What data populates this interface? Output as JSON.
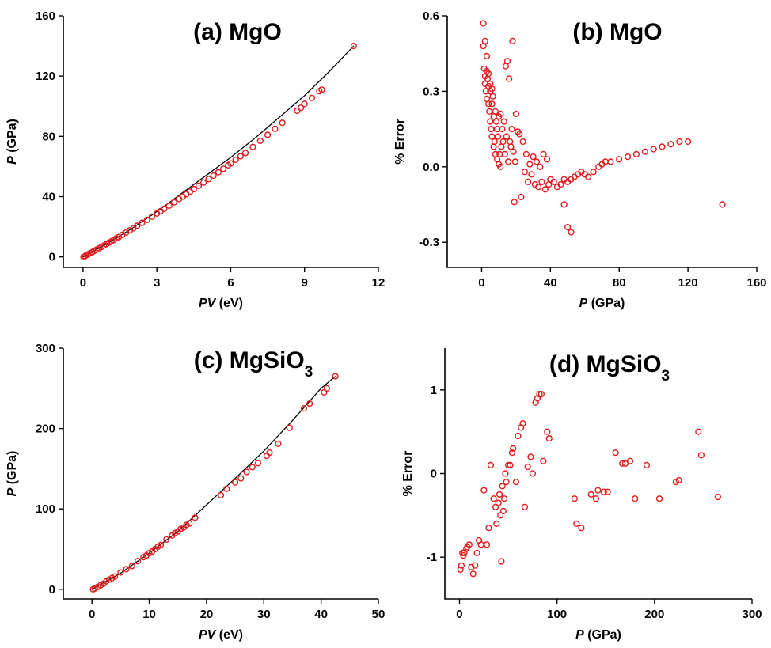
{
  "chart_data": [
    {
      "id": "a",
      "type": "scatter",
      "title": "(a) MgO",
      "title_parts": [
        {
          "t": "(a) MgO"
        }
      ],
      "xlabel_parts": [
        {
          "t": "PV",
          "i": true
        },
        {
          "t": " (eV)"
        }
      ],
      "ylabel_parts": [
        {
          "t": "P",
          "i": true
        },
        {
          "t": " (GPa)"
        }
      ],
      "xlim": [
        -0.8,
        12
      ],
      "ylim": [
        -7,
        160
      ],
      "xticks": [
        0,
        3,
        6,
        9,
        12
      ],
      "yticks": [
        0,
        40,
        80,
        120,
        160
      ],
      "fit_line": {
        "x": [
          0,
          1,
          2,
          3,
          4,
          5,
          6,
          7,
          8,
          9,
          10,
          11
        ],
        "y": [
          0,
          9,
          19,
          30,
          42,
          54,
          66,
          79,
          93,
          107,
          123,
          140
        ]
      },
      "series": [
        {
          "marker": "open-circle",
          "color": "#e31a1c",
          "x": [
            0.02,
            0.08,
            0.15,
            0.22,
            0.3,
            0.38,
            0.45,
            0.55,
            0.65,
            0.75,
            0.85,
            0.95,
            1.05,
            1.15,
            1.25,
            1.35,
            1.45,
            1.6,
            1.75,
            1.9,
            2.05,
            2.2,
            2.4,
            2.6,
            2.8,
            3.0,
            3.15,
            3.3,
            3.5,
            3.7,
            3.9,
            4.05,
            4.2,
            4.35,
            4.5,
            4.7,
            4.9,
            5.1,
            5.3,
            5.5,
            5.7,
            5.9,
            6.0,
            6.2,
            6.4,
            6.6,
            6.9,
            7.2,
            7.5,
            7.8,
            8.1,
            8.7,
            8.85,
            9.0,
            9.3,
            9.6,
            9.7,
            11.0
          ],
          "y": [
            0,
            0.5,
            1.2,
            1.8,
            2.5,
            3.2,
            3.9,
            4.8,
            5.7,
            6.6,
            7.5,
            8.5,
            9.4,
            10.3,
            11.2,
            12.2,
            13.1,
            14.6,
            16.1,
            17.6,
            19.0,
            20.6,
            22.6,
            24.6,
            26.7,
            28.8,
            30.3,
            31.9,
            34.0,
            36.2,
            38.4,
            40.0,
            41.6,
            43.3,
            45.0,
            47.2,
            49.4,
            51.7,
            53.9,
            56.2,
            58.5,
            60.8,
            62.0,
            64.5,
            66.8,
            69.0,
            73.0,
            77.0,
            81.0,
            85.0,
            89.0,
            97.0,
            99.0,
            101.5,
            105.5,
            110.0,
            111.0,
            140.0
          ]
        }
      ]
    },
    {
      "id": "b",
      "type": "scatter",
      "title": "(b) MgO",
      "title_parts": [
        {
          "t": "(b) MgO"
        }
      ],
      "xlabel_parts": [
        {
          "t": "P",
          "i": true
        },
        {
          "t": " (GPa)"
        }
      ],
      "ylabel_parts": [
        {
          "t": "% Error"
        }
      ],
      "xlim": [
        -20,
        160
      ],
      "ylim": [
        -0.4,
        0.6
      ],
      "xticks": [
        0,
        40,
        80,
        120,
        160
      ],
      "yticks": [
        -0.3,
        0.0,
        0.3,
        0.6
      ],
      "ytick_labels": [
        "-0.3",
        "0.0",
        "0.3",
        "0.6"
      ],
      "series": [
        {
          "marker": "open-circle",
          "color": "#e31a1c",
          "x": [
            1,
            1,
            1.5,
            2,
            2,
            2.5,
            3,
            3,
            3.5,
            4,
            4,
            4.5,
            5,
            5,
            5.5,
            6,
            6,
            6.5,
            7,
            7,
            7.5,
            8,
            8,
            8.5,
            9,
            9,
            9.5,
            10,
            10,
            10.5,
            11,
            11,
            11.5,
            12,
            12.5,
            13,
            13.5,
            14,
            14.5,
            15,
            15.5,
            16,
            16.5,
            17,
            17.5,
            18,
            18.5,
            19,
            19.5,
            20,
            21,
            22,
            23,
            24,
            25,
            26,
            27,
            28,
            29,
            30,
            31,
            32,
            33,
            34,
            35,
            36,
            37,
            38,
            39,
            40,
            42,
            44,
            46,
            48,
            50,
            52,
            54,
            56,
            58,
            60,
            62,
            65,
            68,
            70,
            72,
            75,
            80,
            85,
            90,
            95,
            100,
            105,
            110,
            115,
            120,
            140,
            52,
            50,
            48,
            2,
            3,
            4,
            5,
            6
          ],
          "y": [
            0.57,
            0.48,
            0.39,
            0.36,
            0.33,
            0.3,
            0.38,
            0.27,
            0.35,
            0.32,
            0.25,
            0.22,
            0.3,
            0.18,
            0.15,
            0.25,
            0.12,
            0.28,
            0.2,
            0.08,
            0.1,
            0.22,
            0.05,
            0.18,
            0.03,
            0.15,
            0.12,
            0.2,
            0.01,
            0.05,
            0.21,
            0.0,
            0.08,
            0.15,
            0.1,
            0.18,
            0.05,
            0.4,
            0.12,
            0.42,
            0.02,
            0.35,
            0.1,
            0.08,
            0.15,
            0.5,
            0.06,
            -0.14,
            0.02,
            0.21,
            0.14,
            0.13,
            -0.12,
            0.1,
            -0.02,
            0.05,
            -0.06,
            0.01,
            -0.03,
            0.04,
            -0.07,
            0.02,
            -0.08,
            0.0,
            -0.06,
            0.05,
            -0.09,
            0.03,
            -0.07,
            -0.05,
            -0.06,
            -0.08,
            -0.07,
            -0.05,
            -0.06,
            -0.05,
            -0.04,
            -0.03,
            -0.02,
            -0.03,
            -0.04,
            -0.02,
            0.0,
            0.01,
            0.02,
            0.02,
            0.03,
            0.04,
            0.05,
            0.06,
            0.07,
            0.08,
            0.09,
            0.1,
            0.1,
            -0.15,
            -0.26,
            -0.24,
            -0.15,
            0.5,
            0.44,
            0.37,
            0.33,
            0.31
          ],
          "note": "values estimated"
        }
      ]
    },
    {
      "id": "c",
      "type": "scatter",
      "title": "(c) MgSiO3",
      "title_parts": [
        {
          "t": "(c) MgSiO"
        },
        {
          "t": "3",
          "sub": true
        }
      ],
      "xlabel_parts": [
        {
          "t": "PV",
          "i": true
        },
        {
          "t": " (eV)"
        }
      ],
      "ylabel_parts": [
        {
          "t": "P",
          "i": true
        },
        {
          "t": " (GPa)"
        }
      ],
      "xlim": [
        -5,
        50
      ],
      "ylim": [
        -12,
        300
      ],
      "xticks": [
        0,
        10,
        20,
        30,
        40,
        50
      ],
      "yticks": [
        0,
        100,
        200,
        300
      ],
      "fit_line": {
        "x": [
          0,
          5,
          10,
          15,
          20,
          25,
          30,
          35,
          40,
          42.5
        ],
        "y": [
          0,
          20,
          45,
          72,
          105,
          138,
          172,
          210,
          250,
          265
        ]
      },
      "series": [
        {
          "marker": "open-circle",
          "color": "#e31a1c",
          "x": [
            0.2,
            0.5,
            1.0,
            1.5,
            2.0,
            2.5,
            3.0,
            3.5,
            4.0,
            5.0,
            6.0,
            7.0,
            8.0,
            9.0,
            9.5,
            10.0,
            10.5,
            11.0,
            11.5,
            12.0,
            13.0,
            14.0,
            14.5,
            15.0,
            15.5,
            16.0,
            16.5,
            17.0,
            18.0,
            22.5,
            23.5,
            25.0,
            26.0,
            27.0,
            28.0,
            29.0,
            30.5,
            31.0,
            32.5,
            34.5,
            37.0,
            38.0,
            40.5,
            41.0,
            42.5
          ],
          "y": [
            0,
            1,
            3,
            5,
            7,
            10,
            12,
            14,
            16,
            21,
            25,
            29,
            35,
            40,
            42,
            45,
            47,
            50,
            53,
            55,
            62,
            67,
            70,
            72,
            75,
            77,
            80,
            82,
            89,
            117,
            125,
            133,
            138,
            146,
            152,
            157,
            166,
            170,
            181,
            201,
            225,
            231,
            245,
            250,
            265
          ]
        }
      ]
    },
    {
      "id": "d",
      "type": "scatter",
      "title": "(d) MgSiO3",
      "title_parts": [
        {
          "t": "(d) MgSiO"
        },
        {
          "t": "3",
          "sub": true
        }
      ],
      "xlabel_parts": [
        {
          "t": "P",
          "i": true
        },
        {
          "t": " (GPa)"
        }
      ],
      "ylabel_parts": [
        {
          "t": "% Error"
        }
      ],
      "xlim": [
        -15,
        300
      ],
      "ylim": [
        -1.5,
        1.5
      ],
      "xticks": [
        0,
        100,
        200,
        300
      ],
      "yticks": [
        -1,
        0,
        1
      ],
      "ytick_labels": [
        "-1",
        "0",
        "1"
      ],
      "series": [
        {
          "marker": "open-circle",
          "color": "#e31a1c",
          "x": [
            1,
            2,
            3,
            4,
            5,
            7,
            8,
            10,
            12,
            14,
            16,
            18,
            20,
            22,
            25,
            28,
            30,
            32,
            35,
            37,
            38,
            40,
            41,
            42,
            43,
            44,
            45,
            46,
            47,
            48,
            50,
            52,
            54,
            55,
            58,
            60,
            63,
            65,
            67,
            70,
            73,
            75,
            78,
            80,
            82,
            84,
            86,
            90,
            92,
            118,
            120,
            125,
            135,
            140,
            142,
            148,
            152,
            160,
            167,
            170,
            175,
            180,
            192,
            205,
            222,
            225,
            245,
            248,
            265
          ],
          "y": [
            -1.15,
            -1.1,
            -0.95,
            -0.98,
            -0.95,
            -0.9,
            -0.88,
            -0.85,
            -1.12,
            -1.2,
            -1.1,
            -0.95,
            -0.8,
            -0.85,
            -0.2,
            -0.85,
            -0.65,
            0.1,
            -0.3,
            -0.4,
            -0.6,
            -0.35,
            -0.25,
            -0.5,
            -1.05,
            -0.15,
            -0.45,
            -0.3,
            0.0,
            -0.1,
            0.1,
            0.1,
            0.25,
            0.3,
            -0.1,
            0.45,
            0.55,
            0.6,
            -0.4,
            0.08,
            0.2,
            0.0,
            0.85,
            0.9,
            0.95,
            0.95,
            0.15,
            0.5,
            0.42,
            -0.3,
            -0.6,
            -0.65,
            -0.25,
            -0.3,
            -0.2,
            -0.22,
            -0.22,
            0.25,
            0.12,
            0.12,
            0.15,
            -0.3,
            0.1,
            -0.3,
            -0.1,
            -0.08,
            0.5,
            0.22,
            -0.28
          ],
          "note": "values estimated"
        }
      ]
    }
  ]
}
